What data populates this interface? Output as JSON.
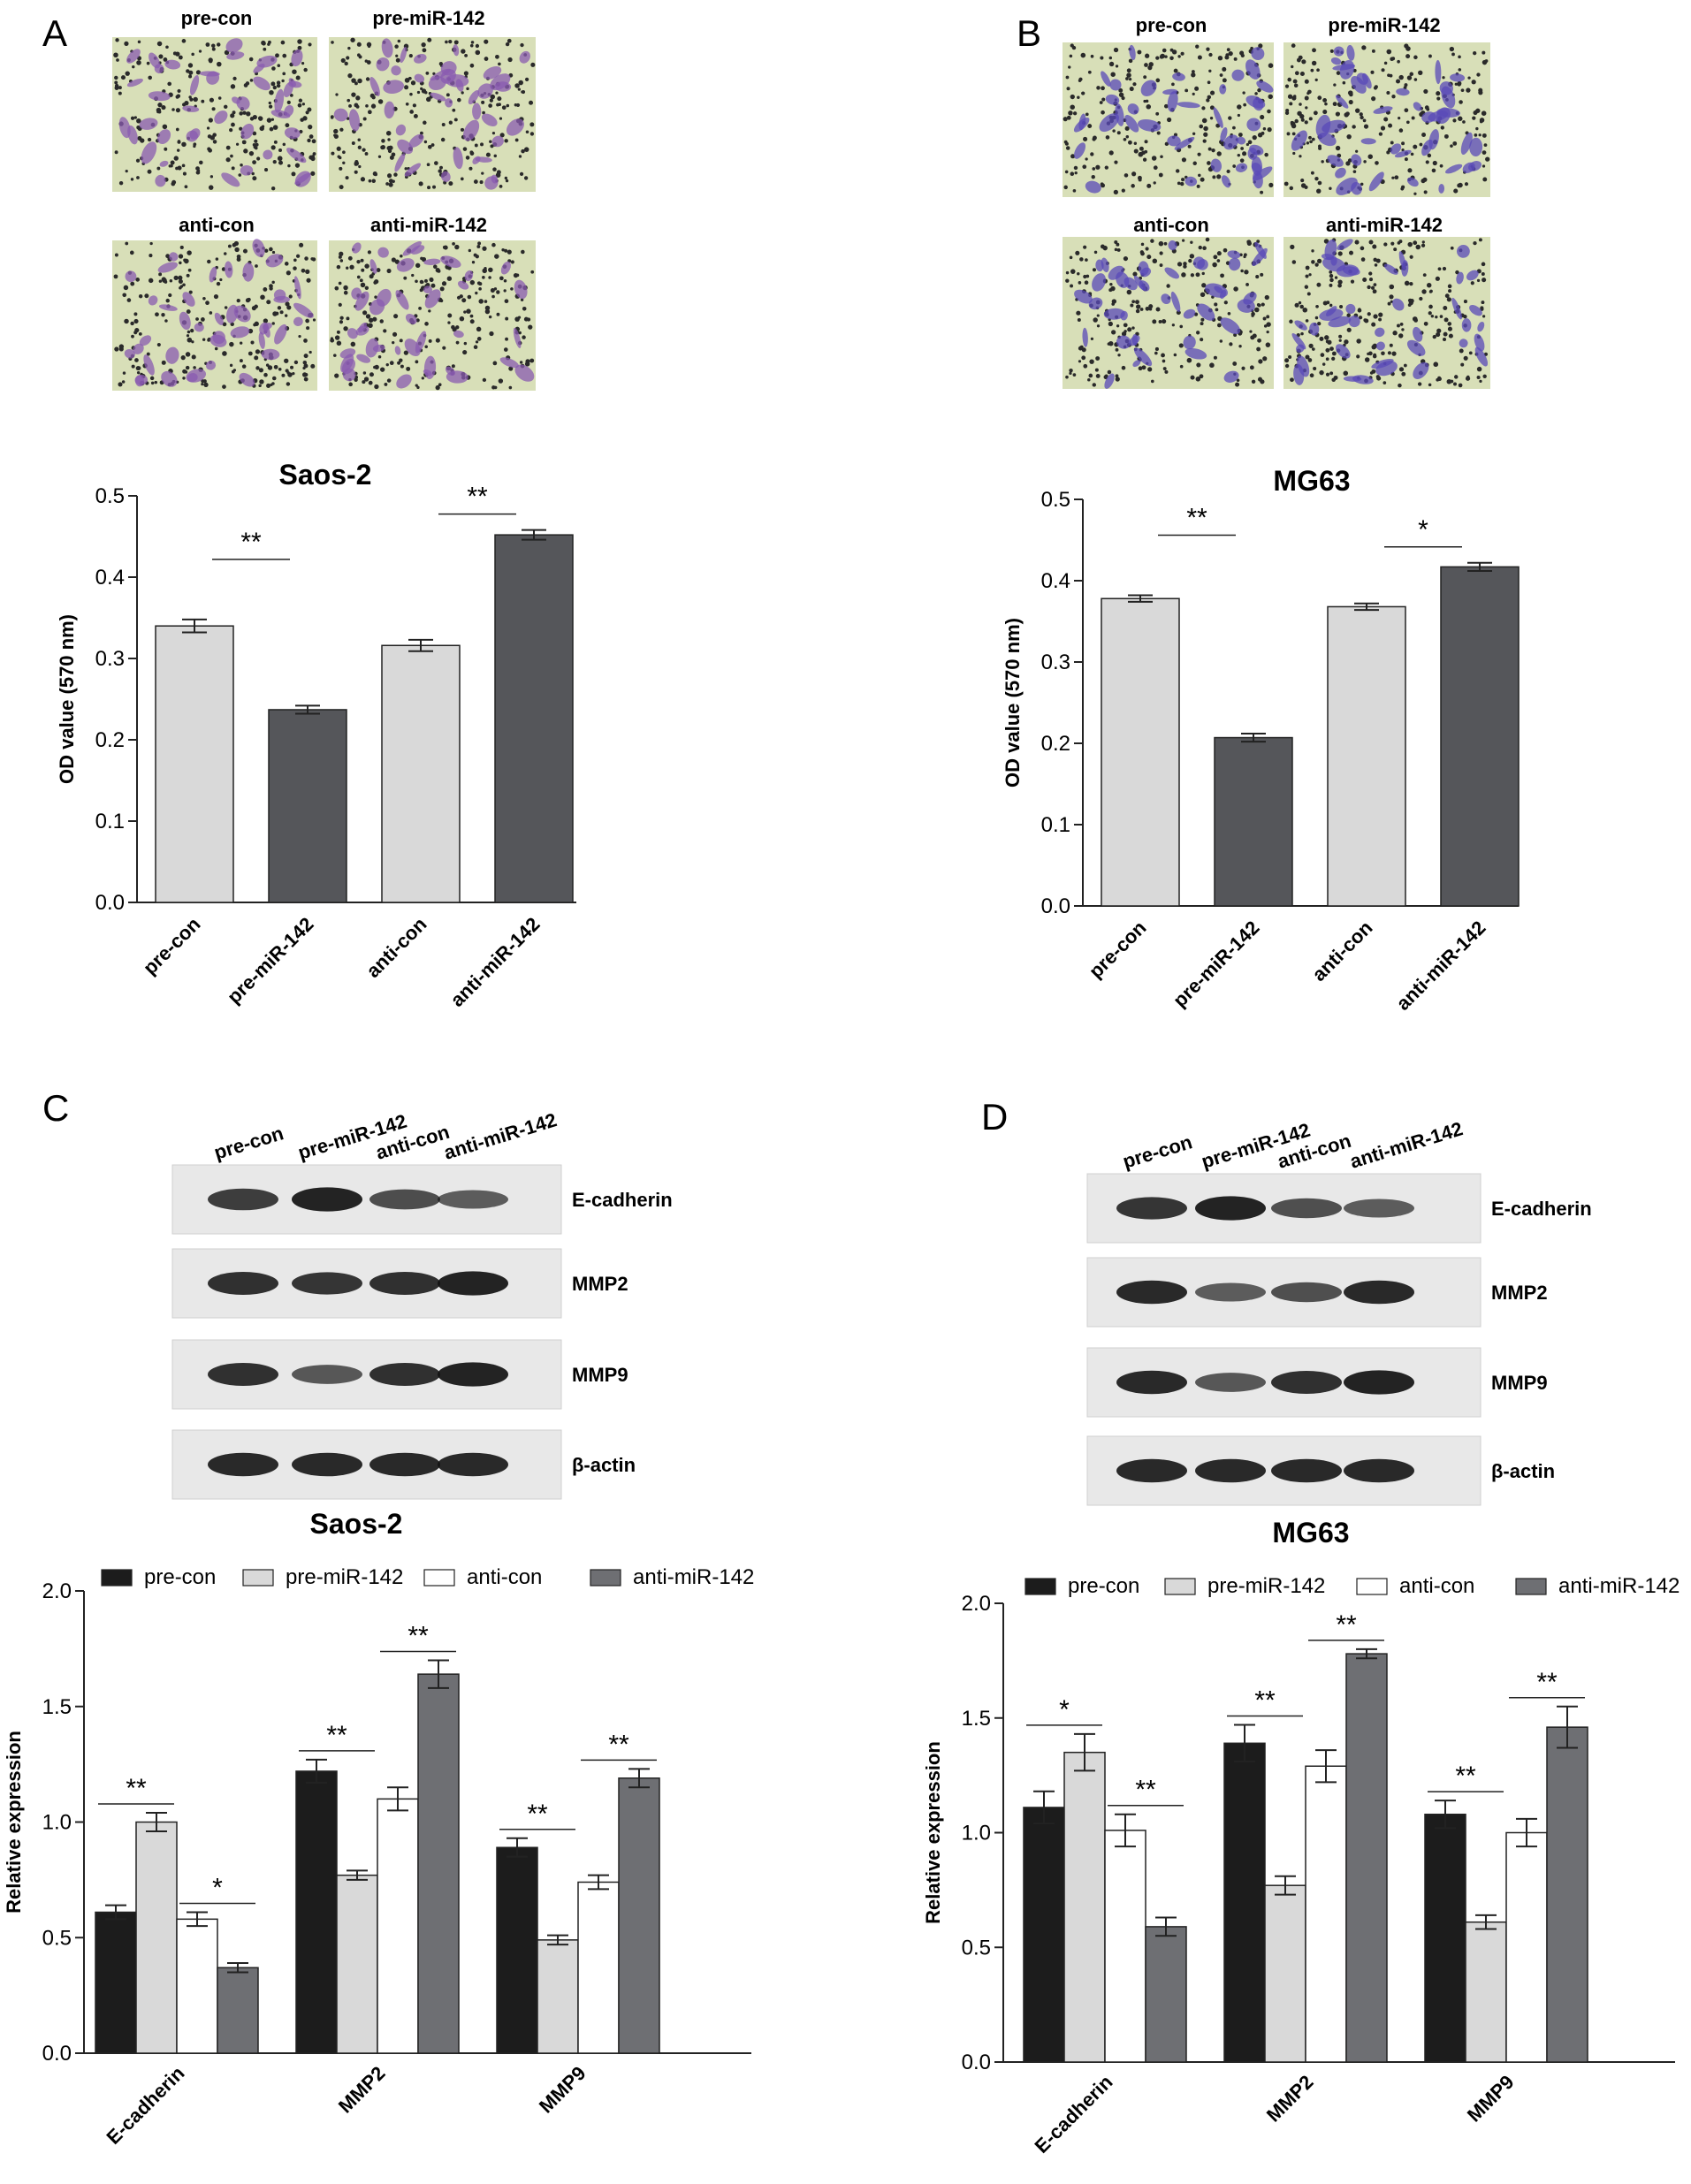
{
  "figure": {
    "panel_labels": [
      "A",
      "B",
      "C",
      "D"
    ],
    "A": {
      "micrograph_labels": [
        "pre-con",
        "pre-miR-142",
        "anti-con",
        "anti-miR-142"
      ],
      "stain_color": "#8a5bb0"
    },
    "B": {
      "micrograph_labels": [
        "pre-con",
        "pre-miR-142",
        "anti-con",
        "anti-miR-142"
      ],
      "stain_color": "#5a4ab8"
    },
    "C": {
      "lane_labels": [
        "pre-con",
        "pre-miR-142",
        "anti-con",
        "anti-miR-142"
      ],
      "bands": [
        {
          "protein": "E-cadherin",
          "intensity": [
            0.75,
            0.95,
            0.62,
            0.5
          ]
        },
        {
          "protein": "MMP2",
          "intensity": [
            0.85,
            0.8,
            0.85,
            0.95
          ]
        },
        {
          "protein": "MMP9",
          "intensity": [
            0.85,
            0.55,
            0.85,
            0.95
          ]
        },
        {
          "protein": "β-actin",
          "intensity": [
            0.9,
            0.9,
            0.9,
            0.9
          ]
        }
      ]
    },
    "D": {
      "lane_labels": [
        "pre-con",
        "pre-miR-142",
        "anti-con",
        "anti-miR-142"
      ],
      "bands": [
        {
          "protein": "E-cadherin",
          "intensity": [
            0.8,
            0.95,
            0.6,
            0.5
          ]
        },
        {
          "protein": "MMP2",
          "intensity": [
            0.9,
            0.5,
            0.6,
            0.9
          ]
        },
        {
          "protein": "MMP9",
          "intensity": [
            0.9,
            0.55,
            0.85,
            0.95
          ]
        },
        {
          "protein": "β-actin",
          "intensity": [
            0.9,
            0.9,
            0.9,
            0.9
          ]
        }
      ]
    }
  },
  "colors": {
    "light_bar": "#d9d9d9",
    "dark_bar": "#55565a",
    "black_bar": "#1c1c1c",
    "white_bar": "#ffffff",
    "gray_bar": "#6e6f73",
    "micrograph_bg": "#d8dfb8"
  },
  "chart_data": [
    {
      "id": "A-bar",
      "type": "bar",
      "title": "Saos-2",
      "xlabel": "",
      "ylabel": "OD value (570 nm)",
      "ylim": [
        0,
        0.5
      ],
      "yticks": [
        "0.0",
        "0.1",
        "0.2",
        "0.3",
        "0.4",
        "0.5"
      ],
      "categories": [
        "pre-con",
        "pre-miR-142",
        "anti-con",
        "anti-miR-142"
      ],
      "values": [
        0.34,
        0.237,
        0.316,
        0.452
      ],
      "errors": [
        0.008,
        0.005,
        0.007,
        0.006
      ],
      "bar_colors": [
        "light",
        "dark",
        "light",
        "dark"
      ],
      "significance": [
        {
          "between": [
            0,
            1
          ],
          "label": "**"
        },
        {
          "between": [
            2,
            3
          ],
          "label": "**"
        }
      ]
    },
    {
      "id": "B-bar",
      "type": "bar",
      "title": "MG63",
      "xlabel": "",
      "ylabel": "OD value (570 nm)",
      "ylim": [
        0,
        0.5
      ],
      "yticks": [
        "0.0",
        "0.1",
        "0.2",
        "0.3",
        "0.4",
        "0.5"
      ],
      "categories": [
        "pre-con",
        "pre-miR-142",
        "anti-con",
        "anti-miR-142"
      ],
      "values": [
        0.378,
        0.207,
        0.368,
        0.417
      ],
      "errors": [
        0.004,
        0.005,
        0.004,
        0.005
      ],
      "bar_colors": [
        "light",
        "dark",
        "light",
        "dark"
      ],
      "significance": [
        {
          "between": [
            0,
            1
          ],
          "label": "**"
        },
        {
          "between": [
            2,
            3
          ],
          "label": "*"
        }
      ]
    },
    {
      "id": "C-bar",
      "type": "bar",
      "title": "Saos-2",
      "xlabel": "",
      "ylabel": "Relative expression",
      "ylim": [
        0,
        2.0
      ],
      "yticks": [
        "0.0",
        "0.5",
        "1.0",
        "1.5",
        "2.0"
      ],
      "categories": [
        "E-cadherin",
        "MMP2",
        "MMP9"
      ],
      "series": [
        {
          "name": "pre-con",
          "values": [
            0.61,
            1.22,
            0.89
          ],
          "errors": [
            0.03,
            0.05,
            0.04
          ]
        },
        {
          "name": "pre-miR-142",
          "values": [
            1.0,
            0.77,
            0.49
          ],
          "errors": [
            0.04,
            0.02,
            0.02
          ]
        },
        {
          "name": "anti-con",
          "values": [
            0.58,
            1.1,
            0.74
          ],
          "errors": [
            0.03,
            0.05,
            0.03
          ]
        },
        {
          "name": "anti-miR-142",
          "values": [
            0.37,
            1.64,
            1.19
          ],
          "errors": [
            0.02,
            0.06,
            0.04
          ]
        }
      ],
      "legend": "top",
      "significance": [
        {
          "group": 0,
          "between": [
            0,
            1
          ],
          "label": "**"
        },
        {
          "group": 0,
          "between": [
            2,
            3
          ],
          "label": "*"
        },
        {
          "group": 1,
          "between": [
            0,
            1
          ],
          "label": "**"
        },
        {
          "group": 1,
          "between": [
            2,
            3
          ],
          "label": "**"
        },
        {
          "group": 2,
          "between": [
            0,
            1
          ],
          "label": "**"
        },
        {
          "group": 2,
          "between": [
            2,
            3
          ],
          "label": "**"
        }
      ]
    },
    {
      "id": "D-bar",
      "type": "bar",
      "title": "MG63",
      "xlabel": "",
      "ylabel": "Relative expression",
      "ylim": [
        0,
        2.0
      ],
      "yticks": [
        "0.0",
        "0.5",
        "1.0",
        "1.5",
        "2.0"
      ],
      "categories": [
        "E-cadherin",
        "MMP2",
        "MMP9"
      ],
      "series": [
        {
          "name": "pre-con",
          "values": [
            1.11,
            1.39,
            1.08
          ],
          "errors": [
            0.07,
            0.08,
            0.06
          ]
        },
        {
          "name": "pre-miR-142",
          "values": [
            1.35,
            0.77,
            0.61
          ],
          "errors": [
            0.08,
            0.04,
            0.03
          ]
        },
        {
          "name": "anti-con",
          "values": [
            1.01,
            1.29,
            1.0
          ],
          "errors": [
            0.07,
            0.07,
            0.06
          ]
        },
        {
          "name": "anti-miR-142",
          "values": [
            0.59,
            1.78,
            1.46
          ],
          "errors": [
            0.04,
            0.02,
            0.09
          ]
        }
      ],
      "legend": "top",
      "significance": [
        {
          "group": 0,
          "between": [
            0,
            1
          ],
          "label": "*"
        },
        {
          "group": 0,
          "between": [
            2,
            3
          ],
          "label": "**"
        },
        {
          "group": 1,
          "between": [
            0,
            1
          ],
          "label": "**"
        },
        {
          "group": 1,
          "between": [
            2,
            3
          ],
          "label": "**"
        },
        {
          "group": 2,
          "between": [
            0,
            1
          ],
          "label": "**"
        },
        {
          "group": 2,
          "between": [
            2,
            3
          ],
          "label": "**"
        }
      ]
    }
  ]
}
